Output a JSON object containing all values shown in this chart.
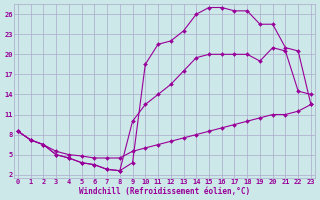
{
  "xlabel": "Windchill (Refroidissement éolien,°C)",
  "bg_color": "#cce8e8",
  "grid_color": "#aaaacc",
  "line_color": "#990099",
  "xlim": [
    -0.3,
    23.3
  ],
  "ylim": [
    1.5,
    27.5
  ],
  "xticks": [
    0,
    1,
    2,
    3,
    4,
    5,
    6,
    7,
    8,
    9,
    10,
    11,
    12,
    13,
    14,
    15,
    16,
    17,
    18,
    19,
    20,
    21,
    22,
    23
  ],
  "yticks": [
    2,
    5,
    8,
    11,
    14,
    17,
    20,
    23,
    26
  ],
  "curve_top_x": [
    0,
    1,
    2,
    3,
    4,
    5,
    6,
    7,
    8,
    9,
    10,
    11,
    12,
    13,
    14,
    15,
    16,
    17,
    18,
    19,
    20,
    21,
    22,
    23
  ],
  "curve_top_y": [
    8.5,
    7.2,
    6.5,
    5.0,
    4.5,
    3.8,
    3.5,
    2.8,
    2.6,
    3.8,
    18.5,
    21.5,
    22.0,
    23.5,
    26.0,
    27.0,
    27.0,
    26.5,
    26.5,
    24.5,
    24.5,
    21.0,
    20.5,
    12.5
  ],
  "curve_mid_x": [
    0,
    1,
    2,
    3,
    4,
    5,
    6,
    7,
    8,
    9,
    10,
    11,
    12,
    13,
    14,
    15,
    16,
    17,
    18,
    19,
    20,
    21,
    22,
    23
  ],
  "curve_mid_y": [
    8.5,
    7.2,
    6.5,
    5.0,
    4.5,
    3.8,
    3.5,
    2.8,
    2.6,
    10.0,
    12.5,
    14.0,
    15.5,
    17.5,
    19.5,
    20.0,
    20.0,
    20.0,
    20.0,
    19.0,
    21.0,
    20.5,
    14.5,
    14.0
  ],
  "curve_bot_x": [
    0,
    1,
    2,
    3,
    4,
    5,
    6,
    7,
    8,
    9,
    10,
    11,
    12,
    13,
    14,
    15,
    16,
    17,
    18,
    19,
    20,
    21,
    22,
    23
  ],
  "curve_bot_y": [
    8.5,
    7.2,
    6.5,
    5.5,
    5.0,
    4.8,
    4.5,
    4.5,
    4.5,
    5.5,
    6.0,
    6.5,
    7.0,
    7.5,
    8.0,
    8.5,
    9.0,
    9.5,
    10.0,
    10.5,
    11.0,
    11.0,
    11.5,
    12.5
  ]
}
